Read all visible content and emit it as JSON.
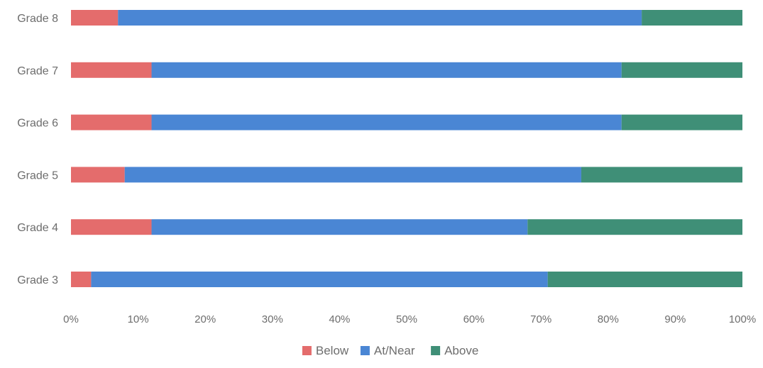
{
  "chart_data": {
    "type": "bar",
    "orientation": "horizontal",
    "stacked": true,
    "percent_stacked": true,
    "categories": [
      "Grade 3",
      "Grade 4",
      "Grade 5",
      "Grade 6",
      "Grade 7",
      "Grade 8"
    ],
    "series": [
      {
        "name": "Below",
        "values": [
          3,
          12,
          8,
          12,
          12,
          7
        ],
        "color": "#e46c6c"
      },
      {
        "name": "At/Near",
        "values": [
          68,
          56,
          68,
          70,
          70,
          78
        ],
        "color": "#4a86d4"
      },
      {
        "name": "Above",
        "values": [
          29,
          32,
          24,
          18,
          18,
          15
        ],
        "color": "#3f8f77"
      }
    ],
    "x_ticks": [
      "0%",
      "10%",
      "20%",
      "30%",
      "40%",
      "50%",
      "60%",
      "70%",
      "80%",
      "90%",
      "100%"
    ],
    "xlim": [
      0,
      100
    ],
    "grid": false,
    "legend_position": "bottom",
    "title": "",
    "xlabel": "",
    "ylabel": ""
  }
}
